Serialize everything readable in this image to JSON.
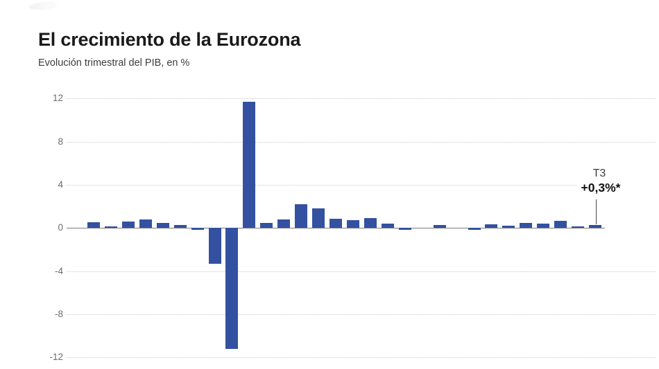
{
  "header": {
    "title": "El crecimiento de la Eurozona",
    "subtitle": "Evolución trimestral del PIB, en %"
  },
  "chart_data": {
    "type": "bar",
    "title": "El crecimiento de la Eurozona",
    "subtitle": "Evolución trimestral del PIB, en %",
    "unit": "%",
    "x_tick_labels": "none",
    "values": [
      0.55,
      0.15,
      0.6,
      0.8,
      0.45,
      0.25,
      -0.2,
      -3.3,
      -11.2,
      11.7,
      0.45,
      0.8,
      2.2,
      1.85,
      0.85,
      0.7,
      0.95,
      0.4,
      -0.2,
      0.0,
      0.3,
      0.0,
      -0.15,
      0.35,
      0.2,
      0.45,
      0.4,
      0.65,
      0.15,
      0.3
    ],
    "ylim": [
      -12,
      12
    ],
    "yticks": [
      12,
      8,
      4,
      0,
      -4,
      -8,
      -12
    ],
    "grid": "horizontal-dotted",
    "legend": "none",
    "annotation": {
      "quarter": "T3",
      "value": "+0,3%*",
      "bar_index": 29
    },
    "colors": {
      "bar": "#3351a0",
      "gridline": "#c9c9c9",
      "zero_line": "#7d7d7d",
      "axis_label": "#6b6b6b",
      "annotation_text": "#111111"
    }
  }
}
